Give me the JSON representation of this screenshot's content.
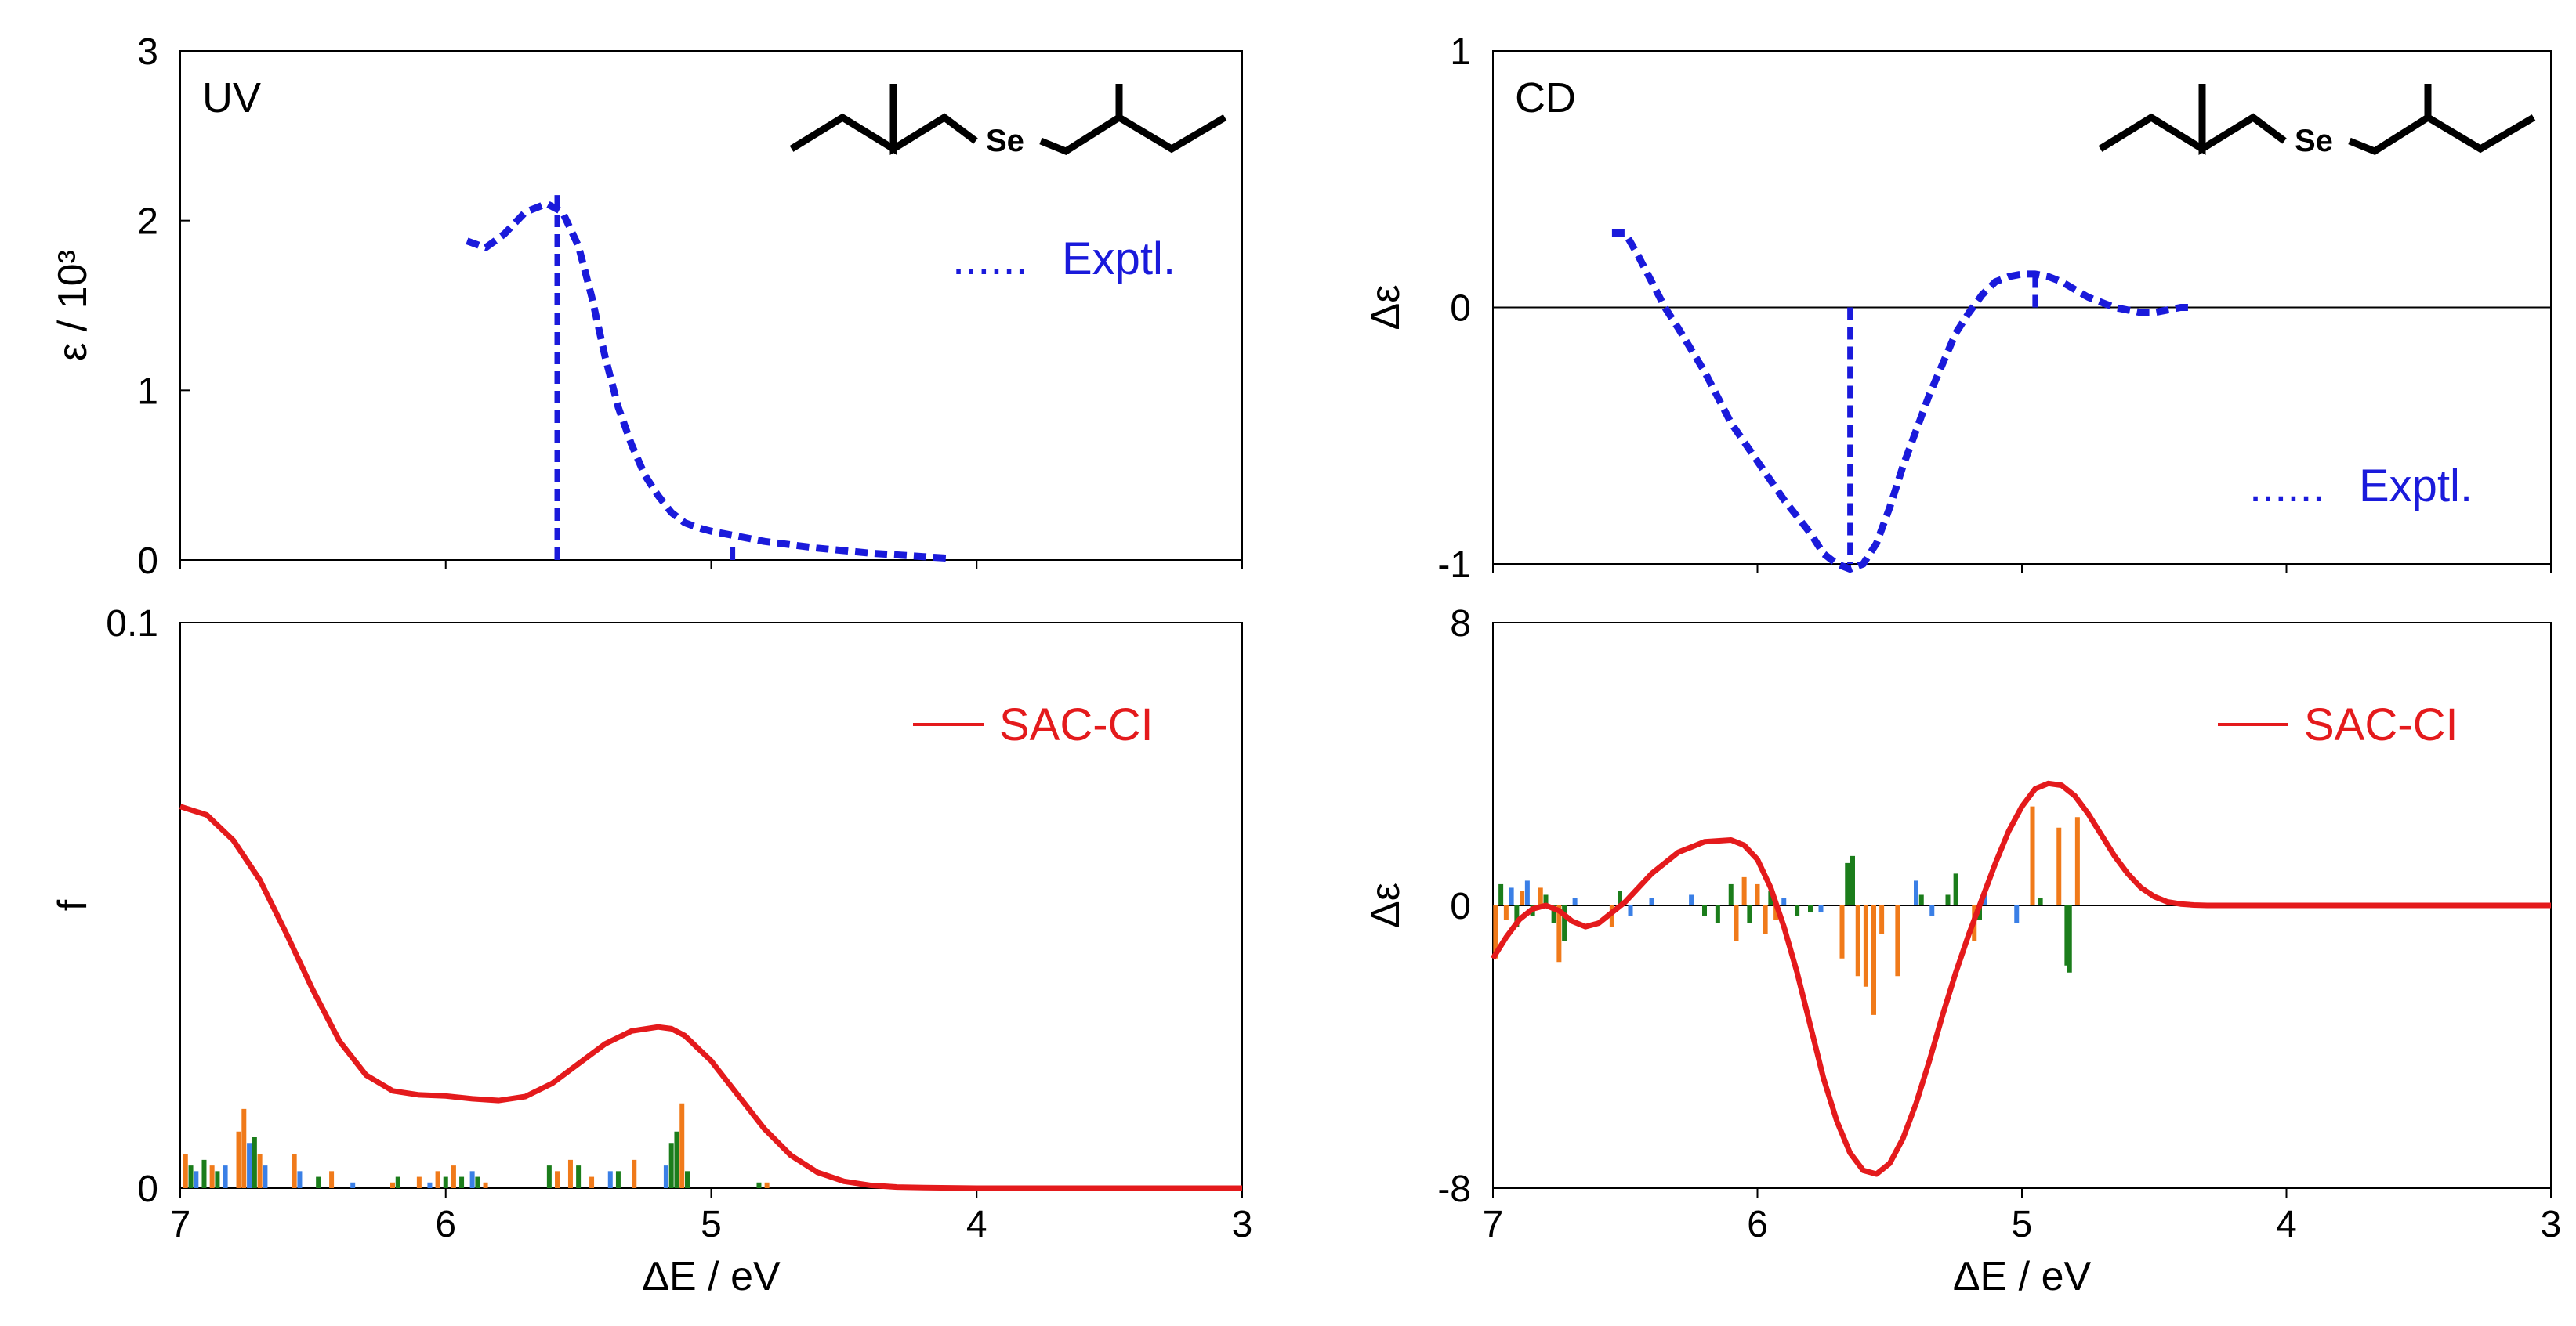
{
  "colors": {
    "experimental": "#1a1adb",
    "sac_ci": "#e41a1c",
    "stick_green": "#1b7d1b",
    "stick_orange": "#f07a1a",
    "stick_blue": "#3a7fe6",
    "axis": "#000000"
  },
  "chart_data": [
    {
      "type": "line",
      "panel": "uv-expt",
      "title": "UV",
      "xlabel": "",
      "ylabel": "ε / 10³",
      "xlim": [
        7,
        3
      ],
      "ylim": [
        0,
        3
      ],
      "xticks": [
        7,
        6,
        5,
        4,
        3
      ],
      "yticks": [
        "0",
        "1",
        "2",
        "3"
      ],
      "ytick_values": [
        0,
        1,
        2,
        3
      ],
      "molecule_label": "Se",
      "series": [
        {
          "name": "Exptl.",
          "style": "dotted",
          "x": [
            5.92,
            5.85,
            5.78,
            5.7,
            5.62,
            5.56,
            5.5,
            5.45,
            5.4,
            5.35,
            5.3,
            5.25,
            5.2,
            5.15,
            5.1,
            5.05,
            5.0,
            4.9,
            4.8,
            4.6,
            4.4,
            4.2,
            4.1
          ],
          "y": [
            1.88,
            1.84,
            1.92,
            2.05,
            2.1,
            2.05,
            1.85,
            1.55,
            1.2,
            0.9,
            0.68,
            0.5,
            0.38,
            0.28,
            0.22,
            0.19,
            0.17,
            0.14,
            0.11,
            0.07,
            0.04,
            0.02,
            0.01
          ]
        }
      ],
      "vlines": [
        {
          "x": 5.58,
          "y0": 0,
          "y1": 2.15
        },
        {
          "x": 4.92,
          "y0": 0,
          "y1": 0.1
        }
      ]
    },
    {
      "type": "line",
      "panel": "cd-expt",
      "title": "CD",
      "xlabel": "",
      "ylabel": "Δε",
      "xlim": [
        7,
        3
      ],
      "ylim": [
        -1,
        1
      ],
      "xticks": [
        7,
        6,
        5,
        4,
        3
      ],
      "yticks": [
        "-1",
        "0",
        "1"
      ],
      "ytick_values": [
        -1,
        0,
        1
      ],
      "molecule_label": "Se",
      "series": [
        {
          "name": "Exptl.",
          "style": "dotted",
          "x": [
            6.55,
            6.5,
            6.45,
            6.4,
            6.35,
            6.3,
            6.2,
            6.1,
            6.0,
            5.9,
            5.8,
            5.75,
            5.7,
            5.65,
            5.6,
            5.55,
            5.5,
            5.45,
            5.4,
            5.35,
            5.3,
            5.25,
            5.2,
            5.15,
            5.1,
            5.05,
            5.0,
            4.95,
            4.9,
            4.85,
            4.8,
            4.75,
            4.7,
            4.65,
            4.6,
            4.55,
            4.5,
            4.45,
            4.4,
            4.35
          ],
          "y": [
            0.29,
            0.29,
            0.2,
            0.1,
            0.0,
            -0.08,
            -0.25,
            -0.45,
            -0.6,
            -0.75,
            -0.88,
            -0.96,
            -1.0,
            -1.02,
            -1.0,
            -0.92,
            -0.78,
            -0.62,
            -0.48,
            -0.34,
            -0.22,
            -0.1,
            -0.02,
            0.05,
            0.1,
            0.12,
            0.13,
            0.13,
            0.12,
            0.1,
            0.07,
            0.04,
            0.02,
            0.0,
            -0.01,
            -0.02,
            -0.02,
            -0.01,
            0.0,
            0.0
          ]
        }
      ],
      "vlines": [
        {
          "x": 5.65,
          "y0": 0,
          "y1": -1
        },
        {
          "x": 4.95,
          "y0": 0,
          "y1": 0.15
        }
      ],
      "zero_line": true
    },
    {
      "type": "line",
      "panel": "uv-calc",
      "xlabel": "ΔE / eV",
      "ylabel": "f",
      "xlim": [
        7,
        3
      ],
      "ylim": [
        0,
        0.1
      ],
      "xticks": [
        7,
        6,
        5,
        4,
        3
      ],
      "yticks": [
        "0",
        "0.1"
      ],
      "ytick_values": [
        0,
        0.1
      ],
      "series": [
        {
          "name": "SAC-CI",
          "style": "solid",
          "x": [
            7.0,
            6.9,
            6.8,
            6.7,
            6.6,
            6.5,
            6.4,
            6.3,
            6.2,
            6.1,
            6.0,
            5.9,
            5.8,
            5.7,
            5.6,
            5.5,
            5.4,
            5.3,
            5.2,
            5.15,
            5.1,
            5.0,
            4.9,
            4.8,
            4.7,
            4.6,
            4.5,
            4.4,
            4.3,
            4.2,
            4.0,
            3.5,
            3.0
          ],
          "y": [
            0.0675,
            0.066,
            0.0615,
            0.0545,
            0.045,
            0.035,
            0.026,
            0.02,
            0.0172,
            0.0165,
            0.0163,
            0.0158,
            0.0155,
            0.0162,
            0.0185,
            0.022,
            0.0255,
            0.0278,
            0.0285,
            0.0282,
            0.027,
            0.0225,
            0.0165,
            0.0105,
            0.0058,
            0.0028,
            0.0012,
            0.0005,
            0.0002,
            0.0001,
            0.0,
            0.0,
            0.0
          ]
        }
      ],
      "sticks": [
        {
          "x": 6.98,
          "y": 0.006,
          "c": "orange"
        },
        {
          "x": 6.96,
          "y": 0.004,
          "c": "green"
        },
        {
          "x": 6.94,
          "y": 0.003,
          "c": "blue"
        },
        {
          "x": 6.91,
          "y": 0.005,
          "c": "green"
        },
        {
          "x": 6.88,
          "y": 0.004,
          "c": "orange"
        },
        {
          "x": 6.86,
          "y": 0.003,
          "c": "green"
        },
        {
          "x": 6.83,
          "y": 0.004,
          "c": "blue"
        },
        {
          "x": 6.78,
          "y": 0.01,
          "c": "orange"
        },
        {
          "x": 6.76,
          "y": 0.014,
          "c": "orange"
        },
        {
          "x": 6.74,
          "y": 0.008,
          "c": "blue"
        },
        {
          "x": 6.72,
          "y": 0.009,
          "c": "green"
        },
        {
          "x": 6.7,
          "y": 0.006,
          "c": "orange"
        },
        {
          "x": 6.68,
          "y": 0.004,
          "c": "blue"
        },
        {
          "x": 6.57,
          "y": 0.006,
          "c": "orange"
        },
        {
          "x": 6.55,
          "y": 0.003,
          "c": "blue"
        },
        {
          "x": 6.48,
          "y": 0.002,
          "c": "green"
        },
        {
          "x": 6.43,
          "y": 0.003,
          "c": "orange"
        },
        {
          "x": 6.35,
          "y": 0.001,
          "c": "blue"
        },
        {
          "x": 6.2,
          "y": 0.001,
          "c": "orange"
        },
        {
          "x": 6.18,
          "y": 0.002,
          "c": "green"
        },
        {
          "x": 6.1,
          "y": 0.002,
          "c": "orange"
        },
        {
          "x": 6.06,
          "y": 0.001,
          "c": "blue"
        },
        {
          "x": 6.03,
          "y": 0.003,
          "c": "orange"
        },
        {
          "x": 6.0,
          "y": 0.002,
          "c": "green"
        },
        {
          "x": 5.97,
          "y": 0.004,
          "c": "orange"
        },
        {
          "x": 5.94,
          "y": 0.002,
          "c": "green"
        },
        {
          "x": 5.9,
          "y": 0.003,
          "c": "blue"
        },
        {
          "x": 5.88,
          "y": 0.002,
          "c": "green"
        },
        {
          "x": 5.85,
          "y": 0.001,
          "c": "orange"
        },
        {
          "x": 5.61,
          "y": 0.004,
          "c": "green"
        },
        {
          "x": 5.58,
          "y": 0.003,
          "c": "orange"
        },
        {
          "x": 5.53,
          "y": 0.005,
          "c": "orange"
        },
        {
          "x": 5.5,
          "y": 0.004,
          "c": "green"
        },
        {
          "x": 5.45,
          "y": 0.002,
          "c": "orange"
        },
        {
          "x": 5.38,
          "y": 0.003,
          "c": "blue"
        },
        {
          "x": 5.35,
          "y": 0.003,
          "c": "green"
        },
        {
          "x": 5.29,
          "y": 0.005,
          "c": "orange"
        },
        {
          "x": 5.17,
          "y": 0.004,
          "c": "blue"
        },
        {
          "x": 5.15,
          "y": 0.008,
          "c": "green"
        },
        {
          "x": 5.13,
          "y": 0.01,
          "c": "green"
        },
        {
          "x": 5.11,
          "y": 0.015,
          "c": "orange"
        },
        {
          "x": 5.09,
          "y": 0.003,
          "c": "green"
        },
        {
          "x": 4.82,
          "y": 0.001,
          "c": "green"
        },
        {
          "x": 4.79,
          "y": 0.001,
          "c": "orange"
        }
      ],
      "legend": "SAC-CI"
    },
    {
      "type": "line",
      "panel": "cd-calc",
      "xlabel": "ΔE / eV",
      "ylabel": "Δε",
      "xlim": [
        7,
        3
      ],
      "ylim": [
        -8,
        8
      ],
      "xticks": [
        7,
        6,
        5,
        4,
        3
      ],
      "yticks": [
        "-8",
        "0",
        "8"
      ],
      "ytick_values": [
        -8,
        0,
        8
      ],
      "series": [
        {
          "name": "SAC-CI",
          "style": "solid",
          "x": [
            7.0,
            6.95,
            6.9,
            6.85,
            6.8,
            6.75,
            6.7,
            6.65,
            6.6,
            6.5,
            6.4,
            6.3,
            6.2,
            6.1,
            6.05,
            6.0,
            5.95,
            5.9,
            5.85,
            5.8,
            5.75,
            5.7,
            5.65,
            5.6,
            5.55,
            5.5,
            5.45,
            5.4,
            5.35,
            5.3,
            5.25,
            5.2,
            5.15,
            5.1,
            5.05,
            5.0,
            4.95,
            4.9,
            4.85,
            4.8,
            4.75,
            4.7,
            4.65,
            4.6,
            4.55,
            4.5,
            4.45,
            4.4,
            4.35,
            4.3,
            4.2,
            4.0,
            3.5,
            3.0
          ],
          "y": [
            -1.5,
            -0.9,
            -0.4,
            -0.1,
            0.0,
            -0.15,
            -0.45,
            -0.6,
            -0.5,
            0.1,
            0.9,
            1.5,
            1.8,
            1.85,
            1.7,
            1.3,
            0.5,
            -0.6,
            -1.9,
            -3.4,
            -4.9,
            -6.1,
            -7.0,
            -7.5,
            -7.6,
            -7.3,
            -6.6,
            -5.6,
            -4.4,
            -3.1,
            -1.9,
            -0.8,
            0.2,
            1.2,
            2.1,
            2.8,
            3.3,
            3.45,
            3.4,
            3.1,
            2.6,
            2.0,
            1.4,
            0.9,
            0.5,
            0.25,
            0.1,
            0.04,
            0.01,
            0.0,
            0.0,
            0.0,
            0.0,
            0.0
          ]
        }
      ],
      "sticks": [
        {
          "x": 6.99,
          "y": -1.5,
          "c": "orange"
        },
        {
          "x": 6.97,
          "y": 0.6,
          "c": "green"
        },
        {
          "x": 6.95,
          "y": -0.4,
          "c": "orange"
        },
        {
          "x": 6.93,
          "y": 0.5,
          "c": "blue"
        },
        {
          "x": 6.91,
          "y": -0.6,
          "c": "green"
        },
        {
          "x": 6.89,
          "y": 0.4,
          "c": "orange"
        },
        {
          "x": 6.87,
          "y": 0.7,
          "c": "blue"
        },
        {
          "x": 6.85,
          "y": -0.3,
          "c": "green"
        },
        {
          "x": 6.82,
          "y": 0.5,
          "c": "orange"
        },
        {
          "x": 6.8,
          "y": 0.3,
          "c": "green"
        },
        {
          "x": 6.77,
          "y": -0.5,
          "c": "green"
        },
        {
          "x": 6.75,
          "y": -1.6,
          "c": "orange"
        },
        {
          "x": 6.73,
          "y": -1.0,
          "c": "green"
        },
        {
          "x": 6.69,
          "y": 0.2,
          "c": "blue"
        },
        {
          "x": 6.55,
          "y": -0.6,
          "c": "orange"
        },
        {
          "x": 6.52,
          "y": 0.4,
          "c": "green"
        },
        {
          "x": 6.48,
          "y": -0.3,
          "c": "blue"
        },
        {
          "x": 6.4,
          "y": 0.2,
          "c": "blue"
        },
        {
          "x": 6.25,
          "y": 0.3,
          "c": "blue"
        },
        {
          "x": 6.2,
          "y": -0.3,
          "c": "green"
        },
        {
          "x": 6.15,
          "y": -0.5,
          "c": "green"
        },
        {
          "x": 6.1,
          "y": 0.6,
          "c": "green"
        },
        {
          "x": 6.08,
          "y": -1.0,
          "c": "orange"
        },
        {
          "x": 6.05,
          "y": 0.8,
          "c": "orange"
        },
        {
          "x": 6.03,
          "y": -0.5,
          "c": "green"
        },
        {
          "x": 6.0,
          "y": 0.6,
          "c": "orange"
        },
        {
          "x": 5.97,
          "y": -0.8,
          "c": "orange"
        },
        {
          "x": 5.95,
          "y": 0.4,
          "c": "green"
        },
        {
          "x": 5.93,
          "y": -0.4,
          "c": "orange"
        },
        {
          "x": 5.9,
          "y": 0.2,
          "c": "blue"
        },
        {
          "x": 5.85,
          "y": -0.3,
          "c": "green"
        },
        {
          "x": 5.8,
          "y": -0.2,
          "c": "green"
        },
        {
          "x": 5.76,
          "y": -0.2,
          "c": "blue"
        },
        {
          "x": 5.68,
          "y": -1.5,
          "c": "orange"
        },
        {
          "x": 5.66,
          "y": 1.2,
          "c": "green"
        },
        {
          "x": 5.64,
          "y": 1.4,
          "c": "green"
        },
        {
          "x": 5.62,
          "y": -2.0,
          "c": "orange"
        },
        {
          "x": 5.59,
          "y": -2.3,
          "c": "orange"
        },
        {
          "x": 5.56,
          "y": -3.1,
          "c": "orange"
        },
        {
          "x": 5.53,
          "y": -0.8,
          "c": "orange"
        },
        {
          "x": 5.47,
          "y": -2.0,
          "c": "orange"
        },
        {
          "x": 5.4,
          "y": 0.7,
          "c": "blue"
        },
        {
          "x": 5.38,
          "y": 0.3,
          "c": "green"
        },
        {
          "x": 5.34,
          "y": -0.3,
          "c": "blue"
        },
        {
          "x": 5.28,
          "y": 0.3,
          "c": "green"
        },
        {
          "x": 5.25,
          "y": 0.9,
          "c": "green"
        },
        {
          "x": 5.18,
          "y": -1.0,
          "c": "orange"
        },
        {
          "x": 5.16,
          "y": -0.4,
          "c": "green"
        },
        {
          "x": 5.14,
          "y": 0.4,
          "c": "blue"
        },
        {
          "x": 5.02,
          "y": -0.5,
          "c": "blue"
        },
        {
          "x": 4.96,
          "y": 2.8,
          "c": "orange"
        },
        {
          "x": 4.93,
          "y": 0.2,
          "c": "green"
        },
        {
          "x": 4.86,
          "y": 2.2,
          "c": "orange"
        },
        {
          "x": 4.83,
          "y": -1.7,
          "c": "green"
        },
        {
          "x": 4.82,
          "y": -1.9,
          "c": "green"
        },
        {
          "x": 4.79,
          "y": 2.5,
          "c": "orange"
        }
      ],
      "legend": "SAC-CI",
      "zero_line": true
    }
  ]
}
